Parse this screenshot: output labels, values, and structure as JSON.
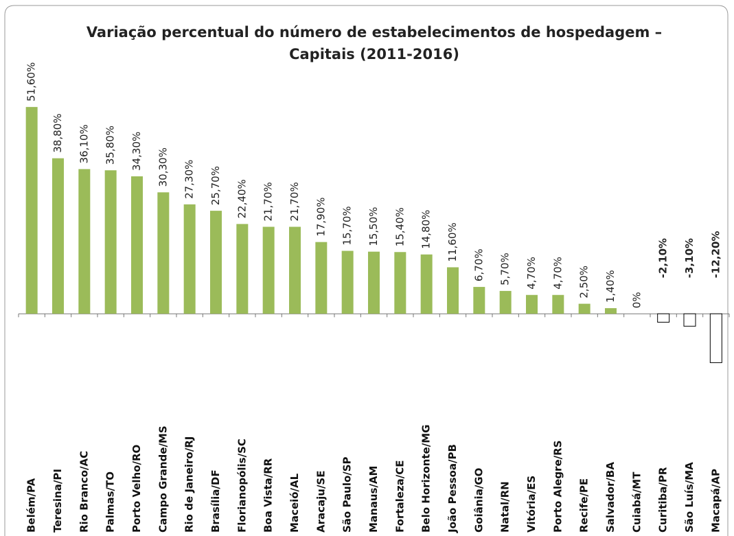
{
  "chart_data": {
    "type": "bar",
    "title": [
      "Variação percentual do número de estabelecimentos de hospedagem –",
      "Capitais (2011-2016)"
    ],
    "categories": [
      "Belém/PA",
      "Teresina/PI",
      "Rio Branco/AC",
      "Palmas/TO",
      "Porto Velho/RO",
      "Campo Grande/MS",
      "Rio de Janeiro/RJ",
      "Brasília/DF",
      "Florianopólis/SC",
      "Boa Vista/RR",
      "Maceió/AL",
      "Aracaju/SE",
      "São Paulo/SP",
      "Manaus/AM",
      "Fortaleza/CE",
      "Belo Horizonte/MG",
      "João Pessoa/PB",
      "Goiânia/GO",
      "Natal/RN",
      "Vitória/ES",
      "Porto Alegre/RS",
      "Recife/PE",
      "Salvador/BA",
      "Cuiabá/MT",
      "Curitiba/PR",
      "São Luís/MA",
      "Macapá/AP"
    ],
    "values": [
      51.6,
      38.8,
      36.1,
      35.8,
      34.3,
      30.3,
      27.3,
      25.7,
      22.4,
      21.7,
      21.7,
      17.9,
      15.7,
      15.5,
      15.4,
      14.8,
      11.6,
      6.7,
      5.7,
      4.7,
      4.7,
      2.5,
      1.4,
      0,
      -2.1,
      -3.1,
      -12.2
    ],
    "value_labels": [
      "51,60%",
      "38,80%",
      "36,10%",
      "35,80%",
      "34,30%",
      "30,30%",
      "27,30%",
      "25,70%",
      "22,40%",
      "21,70%",
      "21,70%",
      "17,90%",
      "15,70%",
      "15,50%",
      "15,40%",
      "14,80%",
      "11,60%",
      "6,70%",
      "5,70%",
      "4,70%",
      "4,70%",
      "2,50%",
      "1,40%",
      "0%",
      "-2,10%",
      "-3,10%",
      "-12,20%"
    ],
    "color": "#9bbb59",
    "negative_fill": "#ffffff",
    "negative_label_color": "#ff0000",
    "ylim": [
      -20,
      55
    ]
  }
}
